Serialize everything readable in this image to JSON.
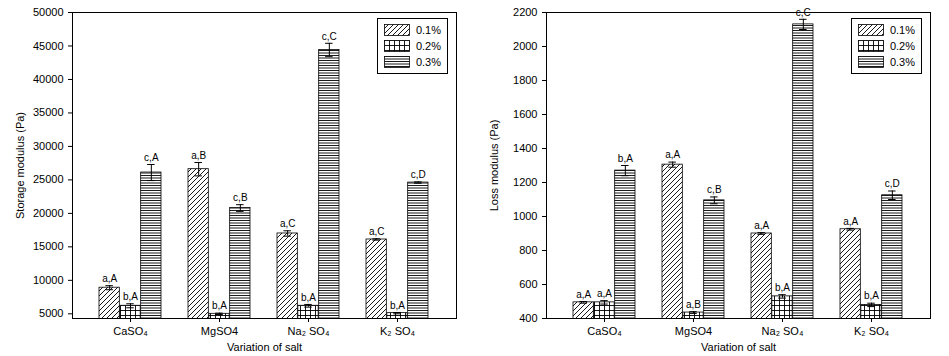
{
  "chart_data": [
    {
      "type": "bar",
      "ylabel": "Storage modulus (Pa)",
      "xlabel": "Variation of salt",
      "categories": [
        "CaSO₄",
        "MgSO4",
        "Na₂ SO₄",
        "K₂ SO₄"
      ],
      "ylim": [
        4300,
        50000
      ],
      "yticks": [
        5000,
        10000,
        15000,
        20000,
        25000,
        30000,
        35000,
        40000,
        45000,
        50000
      ],
      "legend": "upper right",
      "series": [
        {
          "name": "0.1%",
          "color": "#000000",
          "values": [
            8900,
            26600,
            17000,
            16100
          ],
          "errors": [
            300,
            1000,
            400,
            100
          ],
          "labels": [
            "a,A",
            "a,B",
            "a,C",
            "a,C"
          ]
        },
        {
          "name": "0.2%",
          "color": "#000000",
          "values": [
            6200,
            5000,
            6200,
            5100
          ],
          "errors": [
            300,
            100,
            200,
            100
          ],
          "labels": [
            "b,A",
            "b,A",
            "b,A",
            "b,A"
          ]
        },
        {
          "name": "0.3%",
          "color": "#000000",
          "values": [
            26100,
            20800,
            44400,
            24600
          ],
          "errors": [
            1200,
            500,
            1000,
            100
          ],
          "labels": [
            "c,A",
            "c,B",
            "c,C",
            "c,D"
          ]
        }
      ]
    },
    {
      "type": "bar",
      "ylabel": "Loss modulus (Pa)",
      "xlabel": "Variation of salt",
      "categories": [
        "CaSO₄",
        "MgSO4",
        "Na₂ SO₄",
        "K₂ SO₄"
      ],
      "ylim": [
        400,
        2200
      ],
      "yticks": [
        400,
        600,
        800,
        1000,
        1200,
        1400,
        1600,
        1800,
        2000,
        2200
      ],
      "legend": "upper right",
      "series": [
        {
          "name": "0.1%",
          "color": "#000000",
          "values": [
            495,
            1305,
            900,
            925
          ],
          "errors": [
            5,
            15,
            5,
            5
          ],
          "labels": [
            "a,A",
            "a,A",
            "a,A",
            "a,A"
          ]
        },
        {
          "name": "0.2%",
          "color": "#000000",
          "values": [
            495,
            435,
            530,
            480
          ],
          "errors": [
            10,
            5,
            10,
            10
          ],
          "labels": [
            "a,A",
            "a,B",
            "b,A",
            "b,A"
          ]
        },
        {
          "name": "0.3%",
          "color": "#000000",
          "values": [
            1270,
            1095,
            2130,
            1125
          ],
          "errors": [
            30,
            20,
            30,
            25
          ],
          "labels": [
            "b,A",
            "c,B",
            "c,C",
            "c,D"
          ]
        }
      ]
    }
  ]
}
